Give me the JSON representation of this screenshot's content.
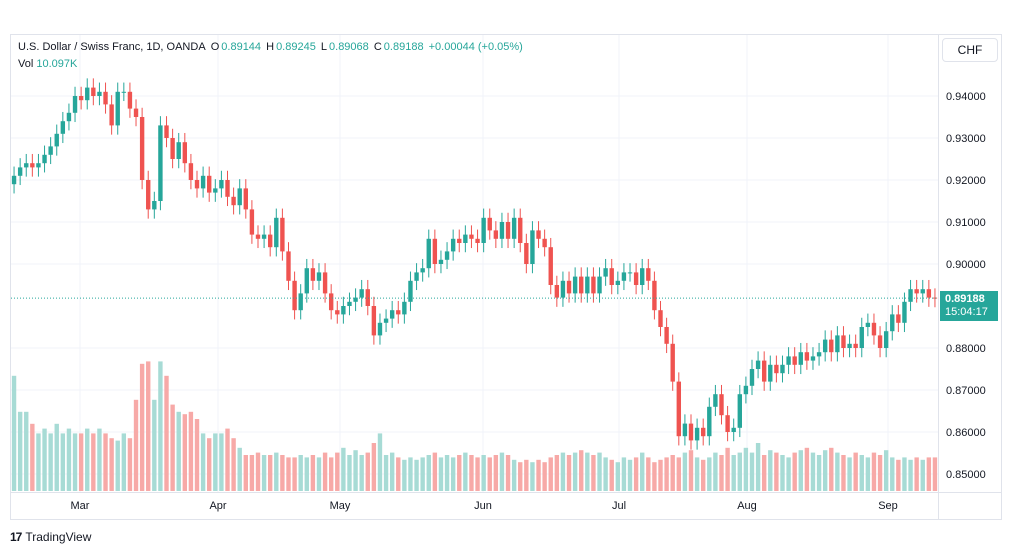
{
  "header": {
    "symbol": "U.S. Dollar / Swiss Franc, 1D, OANDA",
    "o_label": "O",
    "o_value": "0.89144",
    "h_label": "H",
    "h_value": "0.89245",
    "l_label": "L",
    "l_value": "0.89068",
    "c_label": "C",
    "c_value": "0.89188",
    "change": "+0.00044 (+0.05%)",
    "vol_label": "Vol",
    "vol_value": "10.097K"
  },
  "currency_button": "CHF",
  "last_price": {
    "price": "0.89188",
    "countdown": "15:04:17"
  },
  "brand": {
    "logo": "17",
    "name": "TradingView"
  },
  "colors": {
    "up": "#26a69a",
    "down": "#ef5350",
    "vol_up": "#a7dbd5",
    "vol_down": "#f7a9a7",
    "grid": "#f0f3fa"
  },
  "chart_data": {
    "type": "candlestick",
    "interval": "1D",
    "x_axis_labels": [
      "Mar",
      "Apr",
      "May",
      "Jun",
      "Jul",
      "Aug",
      "Sep"
    ],
    "y_axis_labels": [
      "0.94000",
      "0.93000",
      "0.92000",
      "0.91000",
      "0.90000",
      "0.88000",
      "0.87000",
      "0.86000",
      "0.85000"
    ],
    "y_range": [
      0.8475,
      0.9455
    ],
    "last_close": 0.89188,
    "closes": [
      0.921,
      0.923,
      0.924,
      0.923,
      0.924,
      0.926,
      0.928,
      0.931,
      0.934,
      0.936,
      0.94,
      0.939,
      0.942,
      0.94,
      0.941,
      0.938,
      0.933,
      0.941,
      0.941,
      0.937,
      0.935,
      0.92,
      0.913,
      0.915,
      0.933,
      0.93,
      0.925,
      0.929,
      0.924,
      0.92,
      0.918,
      0.921,
      0.917,
      0.918,
      0.92,
      0.916,
      0.914,
      0.918,
      0.913,
      0.907,
      0.906,
      0.907,
      0.904,
      0.911,
      0.903,
      0.896,
      0.889,
      0.893,
      0.899,
      0.896,
      0.898,
      0.893,
      0.889,
      0.888,
      0.89,
      0.891,
      0.892,
      0.894,
      0.89,
      0.883,
      0.886,
      0.887,
      0.889,
      0.888,
      0.891,
      0.896,
      0.898,
      0.899,
      0.906,
      0.9,
      0.901,
      0.903,
      0.906,
      0.905,
      0.907,
      0.906,
      0.905,
      0.911,
      0.908,
      0.906,
      0.91,
      0.906,
      0.911,
      0.905,
      0.9,
      0.908,
      0.906,
      0.904,
      0.895,
      0.892,
      0.896,
      0.893,
      0.897,
      0.893,
      0.897,
      0.893,
      0.897,
      0.899,
      0.895,
      0.896,
      0.898,
      0.898,
      0.895,
      0.899,
      0.896,
      0.889,
      0.885,
      0.881,
      0.872,
      0.859,
      0.862,
      0.858,
      0.861,
      0.859,
      0.866,
      0.869,
      0.864,
      0.86,
      0.861,
      0.869,
      0.871,
      0.875,
      0.877,
      0.872,
      0.876,
      0.874,
      0.876,
      0.878,
      0.876,
      0.879,
      0.877,
      0.878,
      0.879,
      0.882,
      0.879,
      0.883,
      0.88,
      0.881,
      0.88,
      0.885,
      0.886,
      0.883,
      0.88,
      0.884,
      0.888,
      0.886,
      0.891,
      0.894,
      0.893,
      0.894,
      0.892,
      0.8919
    ],
    "volumes": [
      0.48,
      0.33,
      0.33,
      0.28,
      0.24,
      0.26,
      0.24,
      0.28,
      0.24,
      0.26,
      0.24,
      0.24,
      0.26,
      0.24,
      0.26,
      0.24,
      0.22,
      0.21,
      0.24,
      0.22,
      0.38,
      0.53,
      0.54,
      0.38,
      0.54,
      0.48,
      0.36,
      0.33,
      0.32,
      0.33,
      0.3,
      0.24,
      0.22,
      0.24,
      0.24,
      0.26,
      0.22,
      0.18,
      0.15,
      0.15,
      0.16,
      0.15,
      0.15,
      0.16,
      0.15,
      0.14,
      0.14,
      0.15,
      0.14,
      0.15,
      0.14,
      0.16,
      0.14,
      0.16,
      0.18,
      0.15,
      0.17,
      0.15,
      0.16,
      0.2,
      0.24,
      0.15,
      0.16,
      0.14,
      0.13,
      0.14,
      0.13,
      0.14,
      0.15,
      0.16,
      0.14,
      0.15,
      0.14,
      0.15,
      0.16,
      0.15,
      0.14,
      0.15,
      0.14,
      0.15,
      0.16,
      0.15,
      0.13,
      0.12,
      0.13,
      0.12,
      0.13,
      0.12,
      0.14,
      0.15,
      0.16,
      0.15,
      0.16,
      0.17,
      0.16,
      0.15,
      0.16,
      0.14,
      0.13,
      0.12,
      0.14,
      0.13,
      0.14,
      0.16,
      0.14,
      0.12,
      0.13,
      0.14,
      0.15,
      0.14,
      0.16,
      0.17,
      0.14,
      0.13,
      0.14,
      0.16,
      0.15,
      0.18,
      0.15,
      0.16,
      0.18,
      0.16,
      0.2,
      0.15,
      0.17,
      0.16,
      0.15,
      0.14,
      0.16,
      0.17,
      0.18,
      0.16,
      0.15,
      0.17,
      0.18,
      0.16,
      0.15,
      0.14,
      0.16,
      0.15,
      0.14,
      0.16,
      0.15,
      0.17,
      0.14,
      0.13,
      0.14,
      0.13,
      0.14,
      0.13,
      0.14,
      0.14
    ]
  }
}
